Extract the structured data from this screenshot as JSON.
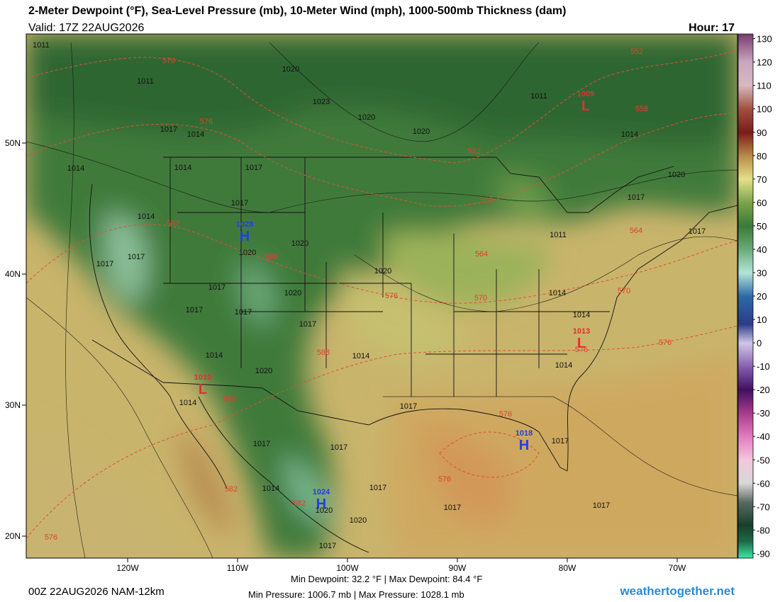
{
  "header": {
    "title": "2-Meter Dewpoint (°F), Sea-Level Pressure (mb), 10-Meter Wind (mph), 1000-500mb Thickness (dam)",
    "valid": "Valid: 17Z 22AUG2026",
    "hour": "Hour: 17"
  },
  "map": {
    "xticks": [
      {
        "value": -120,
        "label": "120W"
      },
      {
        "value": -110,
        "label": "110W"
      },
      {
        "value": -100,
        "label": "100W"
      },
      {
        "value": -90,
        "label": "90W"
      },
      {
        "value": -80,
        "label": "80W"
      },
      {
        "value": -70,
        "label": "70W"
      }
    ],
    "yticks": [
      {
        "value": 50,
        "label": "50N"
      },
      {
        "value": 40,
        "label": "40N"
      },
      {
        "value": 30,
        "label": "30N"
      },
      {
        "value": 20,
        "label": "20N"
      }
    ],
    "pressure_centers": [
      {
        "value": "1009",
        "symbol": "L"
      },
      {
        "value": "1028",
        "symbol": "H"
      },
      {
        "value": "1010",
        "symbol": "L"
      },
      {
        "value": "1013",
        "symbol": "L"
      },
      {
        "value": "1018",
        "symbol": "H"
      },
      {
        "value": "1024",
        "symbol": "H"
      }
    ],
    "isobar_labels": [
      "1011",
      "1011",
      "1020",
      "1023",
      "1020",
      "1020",
      "1011",
      "1017",
      "1014",
      "1014",
      "1014",
      "1017",
      "1017",
      "1014",
      "1020",
      "1017",
      "1017",
      "1020",
      "1020",
      "1020",
      "1017",
      "1017",
      "1017",
      "1017",
      "1014",
      "1014",
      "1014",
      "1014",
      "1020",
      "1014",
      "1014",
      "1017",
      "1017",
      "1017",
      "1017",
      "1014",
      "1017",
      "1020",
      "1020",
      "1017",
      "1017",
      "1017",
      "1011",
      "1017",
      "1017",
      "1020",
      "1014"
    ],
    "thickness_labels": [
      "570",
      "552",
      "576",
      "558",
      "552",
      "582",
      "588",
      "558",
      "564",
      "564",
      "576",
      "570",
      "570",
      "588",
      "576",
      "576",
      "588",
      "576",
      "576",
      "582",
      "582",
      "576"
    ]
  },
  "colorbar": {
    "ylim": [
      -92,
      132
    ],
    "ticks": [
      130,
      120,
      110,
      100,
      90,
      80,
      70,
      60,
      50,
      40,
      30,
      20,
      10,
      0,
      -10,
      -20,
      -30,
      -40,
      -50,
      -60,
      -70,
      -80,
      -90
    ],
    "colorscale": [
      {
        "value": -92,
        "color": "#3fe8a8"
      },
      {
        "value": -85,
        "color": "#1f6b48"
      },
      {
        "value": -78,
        "color": "#17402c"
      },
      {
        "value": -68,
        "color": "#5a6a60"
      },
      {
        "value": -60,
        "color": "#d8d8d8"
      },
      {
        "value": -50,
        "color": "#f2c8dc"
      },
      {
        "value": -40,
        "color": "#e27cc0"
      },
      {
        "value": -30,
        "color": "#a83c8c"
      },
      {
        "value": -20,
        "color": "#401060"
      },
      {
        "value": -10,
        "color": "#8860b0"
      },
      {
        "value": 0,
        "color": "#d0c8e8"
      },
      {
        "value": 8,
        "color": "#2a3c88"
      },
      {
        "value": 20,
        "color": "#2c6aa8"
      },
      {
        "value": 30,
        "color": "#b4e6d8"
      },
      {
        "value": 40,
        "color": "#6aaa7a"
      },
      {
        "value": 50,
        "color": "#3a7a38"
      },
      {
        "value": 60,
        "color": "#7aa44c"
      },
      {
        "value": 70,
        "color": "#e6e08a"
      },
      {
        "value": 80,
        "color": "#b88a48"
      },
      {
        "value": 90,
        "color": "#7a1c1c"
      },
      {
        "value": 100,
        "color": "#a05040"
      },
      {
        "value": 110,
        "color": "#d8b8c0"
      },
      {
        "value": 120,
        "color": "#c8a8c0"
      },
      {
        "value": 132,
        "color": "#7a3c70"
      }
    ]
  },
  "footer": {
    "run": "00Z 22AUG2026 NAM-12km",
    "dewpoint": "Min Dewpoint: 32.2 °F | Max Dewpoint: 84.4 °F",
    "pressure": "Min Pressure: 1006.7 mb | Max Pressure: 1028.1 mb",
    "site": "weathertogether.net"
  }
}
